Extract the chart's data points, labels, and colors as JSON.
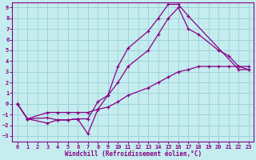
{
  "xlabel": "Windchill (Refroidissement éolien,°C)",
  "ylabel": "",
  "xlim": [
    -0.5,
    23.5
  ],
  "ylim": [
    -3.5,
    9.5
  ],
  "xticks": [
    0,
    1,
    2,
    3,
    4,
    5,
    6,
    7,
    8,
    9,
    10,
    11,
    12,
    13,
    14,
    15,
    16,
    17,
    18,
    19,
    20,
    21,
    22,
    23
  ],
  "yticks": [
    -3,
    -2,
    -1,
    0,
    1,
    2,
    3,
    4,
    5,
    6,
    7,
    8,
    9
  ],
  "background_color": "#c5ecee",
  "grid_color": "#9dd4d8",
  "line_color": "#880088",
  "line1_x": [
    0,
    1,
    3,
    4,
    5,
    6,
    7,
    8,
    9,
    10,
    11,
    13,
    14,
    15,
    16,
    17,
    22,
    23
  ],
  "line1_y": [
    0.0,
    -1.4,
    -1.3,
    -1.5,
    -1.5,
    -1.4,
    -2.8,
    -0.5,
    0.8,
    3.5,
    5.2,
    6.8,
    8.0,
    9.3,
    9.3,
    8.2,
    3.2,
    3.2
  ],
  "line2_x": [
    0,
    1,
    3,
    4,
    5,
    6,
    7,
    8,
    9,
    10,
    11,
    13,
    14,
    15,
    16,
    17,
    18,
    20,
    21,
    22,
    23
  ],
  "line2_y": [
    0.0,
    -1.4,
    -1.8,
    -1.5,
    -1.5,
    -1.4,
    -1.4,
    0.2,
    0.8,
    2.0,
    3.5,
    5.0,
    6.5,
    8.0,
    9.0,
    7.0,
    6.5,
    5.0,
    4.5,
    3.5,
    3.2
  ],
  "line3_x": [
    0,
    1,
    3,
    4,
    5,
    6,
    7,
    8,
    9,
    10,
    11,
    13,
    14,
    15,
    16,
    17,
    18,
    19,
    20,
    21,
    22,
    23
  ],
  "line3_y": [
    0.0,
    -1.4,
    -0.8,
    -0.8,
    -0.8,
    -0.8,
    -0.8,
    -0.5,
    -0.3,
    0.2,
    0.8,
    1.5,
    2.0,
    2.5,
    3.0,
    3.2,
    3.5,
    3.5,
    3.5,
    3.5,
    3.5,
    3.5
  ]
}
